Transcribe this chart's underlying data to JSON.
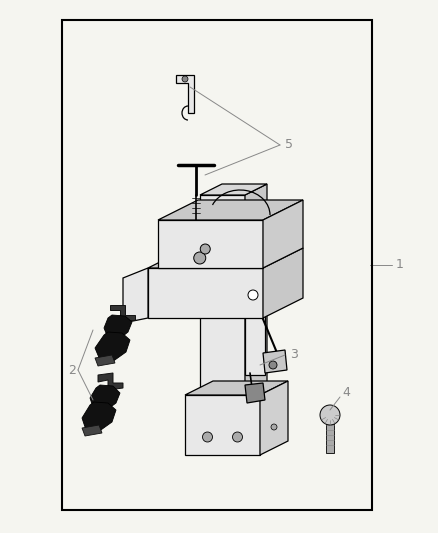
{
  "background_color": "#f5f5f0",
  "border_color": "#1a1a1a",
  "border_linewidth": 1.5,
  "label_color": "#888888",
  "label_fontsize": 9,
  "draw_color": "#1a1a1a",
  "light_gray": "#e8e8e8",
  "mid_gray": "#c8c8c8",
  "dark_gray": "#888888",
  "very_dark": "#1a1a1a",
  "black": "#000000",
  "white": "#ffffff",
  "pad_dark": "#2a2a2a"
}
